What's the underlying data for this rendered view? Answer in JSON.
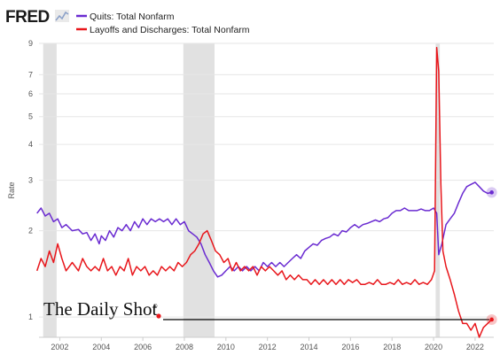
{
  "header": {
    "logo_text": "FRED",
    "logo_icon": "chart-line-icon"
  },
  "watermark": {
    "text": "The Daily Shot",
    "mark": "®"
  },
  "chart_data": {
    "type": "line",
    "title": "",
    "xlabel": "",
    "ylabel": "Rate",
    "y_scale": "log",
    "xlim": [
      2001,
      2022.9
    ],
    "ylim": [
      0.85,
      9
    ],
    "x_ticks": [
      2002,
      2004,
      2006,
      2008,
      2010,
      2012,
      2014,
      2016,
      2018,
      2020,
      2022
    ],
    "y_ticks": [
      1,
      2,
      3,
      4,
      5,
      6,
      7,
      9
    ],
    "recessions": [
      [
        2001.2,
        2001.85
      ],
      [
        2007.95,
        2009.45
      ],
      [
        2020.1,
        2020.3
      ]
    ],
    "reference_line": {
      "y": 0.98,
      "color": "#000000"
    },
    "colors": {
      "quits": "#6a2bd1",
      "layoffs": "#e8161b",
      "recession": "#e1e1e1"
    },
    "series": [
      {
        "name": "Quits: Total Nonfarm",
        "color": "#6a2bd1",
        "points": [
          [
            2000.9,
            2.3
          ],
          [
            2001.1,
            2.4
          ],
          [
            2001.3,
            2.25
          ],
          [
            2001.5,
            2.3
          ],
          [
            2001.7,
            2.15
          ],
          [
            2001.9,
            2.2
          ],
          [
            2002.1,
            2.05
          ],
          [
            2002.3,
            2.1
          ],
          [
            2002.6,
            2.0
          ],
          [
            2002.9,
            2.02
          ],
          [
            2003.1,
            1.95
          ],
          [
            2003.3,
            1.97
          ],
          [
            2003.5,
            1.85
          ],
          [
            2003.7,
            1.95
          ],
          [
            2003.9,
            1.8
          ],
          [
            2004.0,
            1.92
          ],
          [
            2004.2,
            1.85
          ],
          [
            2004.4,
            2.0
          ],
          [
            2004.6,
            1.9
          ],
          [
            2004.8,
            2.05
          ],
          [
            2005.0,
            2.0
          ],
          [
            2005.2,
            2.1
          ],
          [
            2005.4,
            2.0
          ],
          [
            2005.6,
            2.15
          ],
          [
            2005.8,
            2.05
          ],
          [
            2006.0,
            2.2
          ],
          [
            2006.2,
            2.1
          ],
          [
            2006.4,
            2.2
          ],
          [
            2006.6,
            2.15
          ],
          [
            2006.8,
            2.2
          ],
          [
            2007.0,
            2.15
          ],
          [
            2007.2,
            2.2
          ],
          [
            2007.4,
            2.1
          ],
          [
            2007.6,
            2.2
          ],
          [
            2007.8,
            2.1
          ],
          [
            2008.0,
            2.15
          ],
          [
            2008.2,
            2.0
          ],
          [
            2008.4,
            1.95
          ],
          [
            2008.6,
            1.9
          ],
          [
            2008.8,
            1.8
          ],
          [
            2009.0,
            1.65
          ],
          [
            2009.2,
            1.55
          ],
          [
            2009.4,
            1.45
          ],
          [
            2009.6,
            1.38
          ],
          [
            2009.8,
            1.4
          ],
          [
            2010.0,
            1.45
          ],
          [
            2010.2,
            1.5
          ],
          [
            2010.4,
            1.45
          ],
          [
            2010.6,
            1.5
          ],
          [
            2010.8,
            1.45
          ],
          [
            2011.0,
            1.5
          ],
          [
            2011.2,
            1.45
          ],
          [
            2011.4,
            1.5
          ],
          [
            2011.6,
            1.45
          ],
          [
            2011.8,
            1.55
          ],
          [
            2012.0,
            1.5
          ],
          [
            2012.2,
            1.55
          ],
          [
            2012.4,
            1.5
          ],
          [
            2012.6,
            1.55
          ],
          [
            2012.8,
            1.5
          ],
          [
            2013.0,
            1.55
          ],
          [
            2013.2,
            1.6
          ],
          [
            2013.4,
            1.65
          ],
          [
            2013.6,
            1.6
          ],
          [
            2013.8,
            1.7
          ],
          [
            2014.0,
            1.75
          ],
          [
            2014.2,
            1.8
          ],
          [
            2014.4,
            1.78
          ],
          [
            2014.6,
            1.85
          ],
          [
            2014.8,
            1.88
          ],
          [
            2015.0,
            1.9
          ],
          [
            2015.2,
            1.95
          ],
          [
            2015.4,
            1.92
          ],
          [
            2015.6,
            2.0
          ],
          [
            2015.8,
            1.98
          ],
          [
            2016.0,
            2.05
          ],
          [
            2016.2,
            2.1
          ],
          [
            2016.4,
            2.05
          ],
          [
            2016.6,
            2.1
          ],
          [
            2016.8,
            2.12
          ],
          [
            2017.0,
            2.15
          ],
          [
            2017.2,
            2.18
          ],
          [
            2017.4,
            2.15
          ],
          [
            2017.6,
            2.2
          ],
          [
            2017.8,
            2.22
          ],
          [
            2018.0,
            2.3
          ],
          [
            2018.2,
            2.35
          ],
          [
            2018.4,
            2.35
          ],
          [
            2018.6,
            2.4
          ],
          [
            2018.8,
            2.35
          ],
          [
            2019.0,
            2.35
          ],
          [
            2019.2,
            2.35
          ],
          [
            2019.4,
            2.38
          ],
          [
            2019.6,
            2.35
          ],
          [
            2019.8,
            2.35
          ],
          [
            2020.0,
            2.4
          ],
          [
            2020.15,
            2.3
          ],
          [
            2020.25,
            1.65
          ],
          [
            2020.4,
            1.8
          ],
          [
            2020.6,
            2.1
          ],
          [
            2020.8,
            2.2
          ],
          [
            2021.0,
            2.3
          ],
          [
            2021.2,
            2.5
          ],
          [
            2021.4,
            2.7
          ],
          [
            2021.6,
            2.85
          ],
          [
            2021.8,
            2.9
          ],
          [
            2022.0,
            2.95
          ],
          [
            2022.2,
            2.85
          ],
          [
            2022.4,
            2.75
          ],
          [
            2022.6,
            2.7
          ],
          [
            2022.8,
            2.72
          ]
        ]
      },
      {
        "name": "Layoffs and Discharges: Total Nonfarm",
        "color": "#e8161b",
        "points": [
          [
            2000.9,
            1.45
          ],
          [
            2001.1,
            1.6
          ],
          [
            2001.3,
            1.5
          ],
          [
            2001.5,
            1.7
          ],
          [
            2001.7,
            1.55
          ],
          [
            2001.9,
            1.8
          ],
          [
            2002.1,
            1.6
          ],
          [
            2002.3,
            1.45
          ],
          [
            2002.6,
            1.55
          ],
          [
            2002.9,
            1.45
          ],
          [
            2003.1,
            1.6
          ],
          [
            2003.3,
            1.5
          ],
          [
            2003.5,
            1.45
          ],
          [
            2003.7,
            1.5
          ],
          [
            2003.9,
            1.45
          ],
          [
            2004.1,
            1.6
          ],
          [
            2004.3,
            1.45
          ],
          [
            2004.5,
            1.5
          ],
          [
            2004.7,
            1.4
          ],
          [
            2004.9,
            1.5
          ],
          [
            2005.1,
            1.45
          ],
          [
            2005.3,
            1.6
          ],
          [
            2005.5,
            1.4
          ],
          [
            2005.7,
            1.5
          ],
          [
            2005.9,
            1.45
          ],
          [
            2006.1,
            1.5
          ],
          [
            2006.3,
            1.4
          ],
          [
            2006.5,
            1.45
          ],
          [
            2006.7,
            1.4
          ],
          [
            2006.9,
            1.5
          ],
          [
            2007.1,
            1.45
          ],
          [
            2007.3,
            1.5
          ],
          [
            2007.5,
            1.45
          ],
          [
            2007.7,
            1.55
          ],
          [
            2007.9,
            1.5
          ],
          [
            2008.1,
            1.55
          ],
          [
            2008.3,
            1.65
          ],
          [
            2008.5,
            1.7
          ],
          [
            2008.7,
            1.8
          ],
          [
            2008.9,
            1.95
          ],
          [
            2009.1,
            2.0
          ],
          [
            2009.3,
            1.85
          ],
          [
            2009.5,
            1.7
          ],
          [
            2009.7,
            1.65
          ],
          [
            2009.9,
            1.55
          ],
          [
            2010.1,
            1.6
          ],
          [
            2010.3,
            1.45
          ],
          [
            2010.5,
            1.55
          ],
          [
            2010.7,
            1.45
          ],
          [
            2010.9,
            1.5
          ],
          [
            2011.1,
            1.45
          ],
          [
            2011.3,
            1.5
          ],
          [
            2011.5,
            1.4
          ],
          [
            2011.7,
            1.5
          ],
          [
            2011.9,
            1.45
          ],
          [
            2012.1,
            1.5
          ],
          [
            2012.3,
            1.45
          ],
          [
            2012.5,
            1.4
          ],
          [
            2012.7,
            1.45
          ],
          [
            2012.9,
            1.35
          ],
          [
            2013.1,
            1.4
          ],
          [
            2013.3,
            1.35
          ],
          [
            2013.5,
            1.4
          ],
          [
            2013.7,
            1.35
          ],
          [
            2013.9,
            1.35
          ],
          [
            2014.1,
            1.3
          ],
          [
            2014.3,
            1.35
          ],
          [
            2014.5,
            1.3
          ],
          [
            2014.7,
            1.35
          ],
          [
            2014.9,
            1.3
          ],
          [
            2015.1,
            1.35
          ],
          [
            2015.3,
            1.3
          ],
          [
            2015.5,
            1.35
          ],
          [
            2015.7,
            1.3
          ],
          [
            2015.9,
            1.35
          ],
          [
            2016.1,
            1.32
          ],
          [
            2016.3,
            1.35
          ],
          [
            2016.5,
            1.3
          ],
          [
            2016.7,
            1.3
          ],
          [
            2016.9,
            1.32
          ],
          [
            2017.1,
            1.3
          ],
          [
            2017.3,
            1.35
          ],
          [
            2017.5,
            1.3
          ],
          [
            2017.7,
            1.3
          ],
          [
            2017.9,
            1.32
          ],
          [
            2018.1,
            1.3
          ],
          [
            2018.3,
            1.35
          ],
          [
            2018.5,
            1.3
          ],
          [
            2018.7,
            1.32
          ],
          [
            2018.9,
            1.3
          ],
          [
            2019.1,
            1.35
          ],
          [
            2019.3,
            1.3
          ],
          [
            2019.5,
            1.32
          ],
          [
            2019.7,
            1.3
          ],
          [
            2019.9,
            1.35
          ],
          [
            2020.05,
            1.45
          ],
          [
            2020.15,
            8.7
          ],
          [
            2020.25,
            7.2
          ],
          [
            2020.35,
            2.9
          ],
          [
            2020.45,
            1.7
          ],
          [
            2020.6,
            1.5
          ],
          [
            2020.8,
            1.35
          ],
          [
            2021.0,
            1.2
          ],
          [
            2021.2,
            1.05
          ],
          [
            2021.4,
            0.95
          ],
          [
            2021.6,
            0.95
          ],
          [
            2021.8,
            0.9
          ],
          [
            2022.0,
            0.95
          ],
          [
            2022.2,
            0.85
          ],
          [
            2022.4,
            0.92
          ],
          [
            2022.6,
            0.95
          ],
          [
            2022.8,
            0.98
          ]
        ]
      }
    ]
  }
}
